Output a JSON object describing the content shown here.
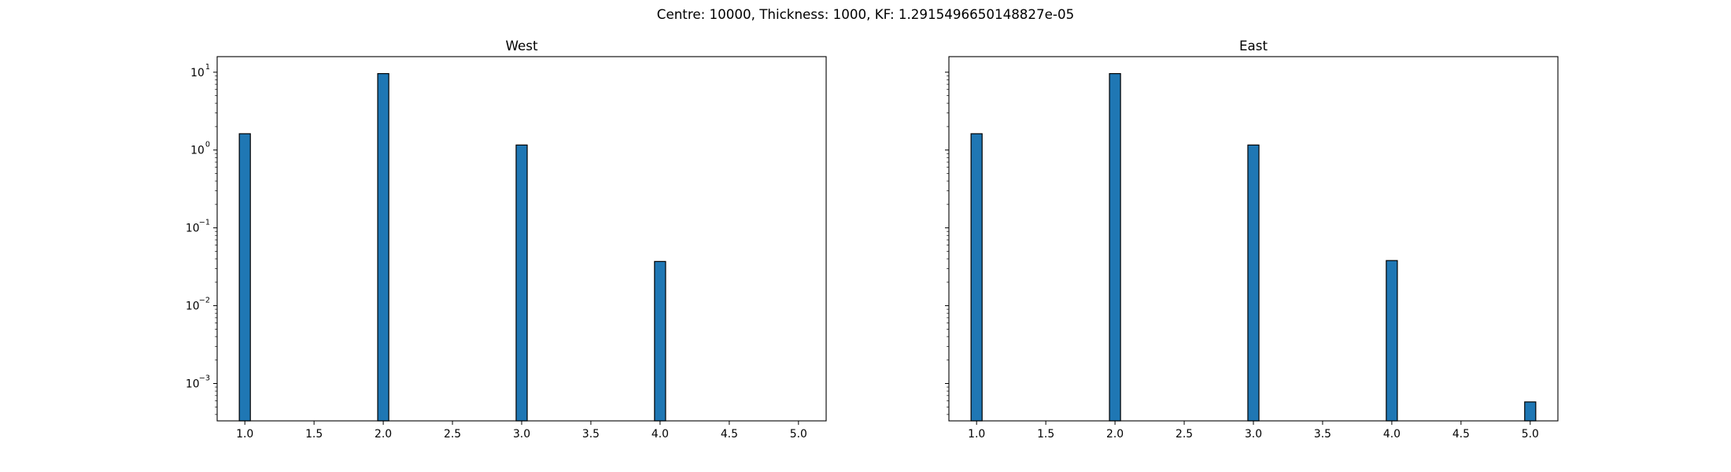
{
  "figure": {
    "suptitle": "Centre: 10000, Thickness: 1000, KF: 1.2915496650148827e-05"
  },
  "chart_data": [
    {
      "type": "bar",
      "title": "West",
      "xlabel": "",
      "ylabel": "",
      "xlim": [
        0.8,
        5.2
      ],
      "ylim_log10": [
        -3.48,
        1.2
      ],
      "yscale": "log",
      "xticks": [
        "1.0",
        "1.5",
        "2.0",
        "2.5",
        "3.0",
        "3.5",
        "4.0",
        "4.5",
        "5.0"
      ],
      "yticks": [
        {
          "base": "10",
          "exp": "1"
        },
        {
          "base": "10",
          "exp": "0"
        },
        {
          "base": "10",
          "exp": "−1"
        },
        {
          "base": "10",
          "exp": "−2"
        },
        {
          "base": "10",
          "exp": "−3"
        }
      ],
      "bar_width": 0.08,
      "bar_color": "#1f77b4",
      "edge_color": "#000000",
      "bars": [
        {
          "x": 1.0,
          "y": 1.62
        },
        {
          "x": 2.0,
          "y": 9.6
        },
        {
          "x": 3.0,
          "y": 1.16
        },
        {
          "x": 4.0,
          "y": 0.037
        }
      ]
    },
    {
      "type": "bar",
      "title": "East",
      "xlabel": "",
      "ylabel": "",
      "xlim": [
        0.8,
        5.2
      ],
      "ylim_log10": [
        -3.48,
        1.2
      ],
      "yscale": "log",
      "sharey": true,
      "xticks": [
        "1.0",
        "1.5",
        "2.0",
        "2.5",
        "3.0",
        "3.5",
        "4.0",
        "4.5",
        "5.0"
      ],
      "yticks": [],
      "bar_width": 0.08,
      "bar_color": "#1f77b4",
      "edge_color": "#000000",
      "bars": [
        {
          "x": 1.0,
          "y": 1.62
        },
        {
          "x": 2.0,
          "y": 9.6
        },
        {
          "x": 3.0,
          "y": 1.16
        },
        {
          "x": 4.0,
          "y": 0.038
        },
        {
          "x": 5.0,
          "y": 0.00058
        }
      ]
    }
  ]
}
